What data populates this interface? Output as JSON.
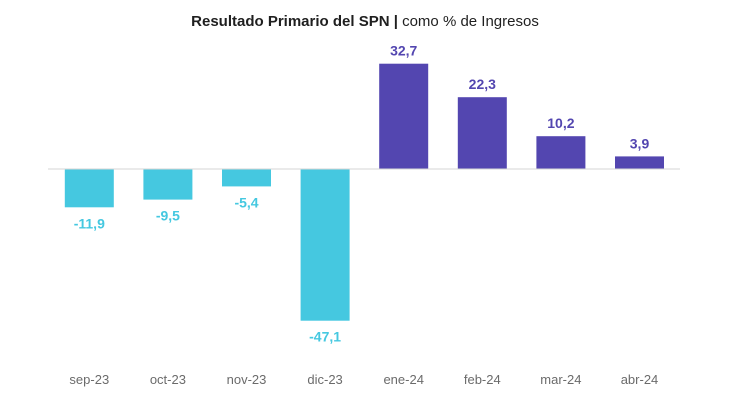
{
  "chart_data": {
    "type": "bar",
    "title": "Resultado Primario del SPN",
    "separator": "|",
    "subtitle": "como % de Ingresos",
    "categories": [
      "sep-23",
      "oct-23",
      "nov-23",
      "dic-23",
      "ene-24",
      "feb-24",
      "mar-24",
      "abr-24"
    ],
    "values": [
      -11.9,
      -9.5,
      -5.4,
      -47.1,
      32.7,
      22.3,
      10.2,
      3.9
    ],
    "value_labels": [
      "-11,9",
      "-9,5",
      "-5,4",
      "-47,1",
      "32,7",
      "22,3",
      "10,2",
      "3,9"
    ],
    "colors": {
      "negative": "#45c8e0",
      "positive": "#5346b0"
    },
    "xlabel": "",
    "ylabel": "",
    "grid": false,
    "legend": "none"
  }
}
